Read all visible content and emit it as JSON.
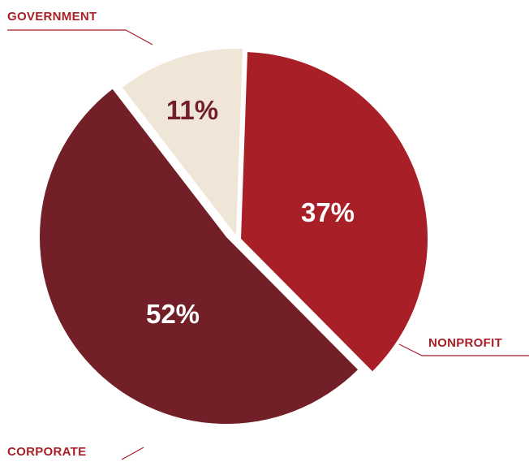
{
  "chart_data": {
    "type": "pie",
    "title": "",
    "slices": [
      {
        "label": "NONPROFIT",
        "value": 37,
        "display": "37%",
        "color": "#a91f27",
        "text_color": "#ffffff"
      },
      {
        "label": "CORPORATE",
        "value": 52,
        "display": "52%",
        "color": "#721f28",
        "text_color": "#ffffff"
      },
      {
        "label": "GOVERNMENT",
        "value": 11,
        "display": "11%",
        "color": "#efe6d8",
        "text_color": "#721f28"
      }
    ],
    "label_color": "#a91f27",
    "leader_color": "#a91f27"
  }
}
